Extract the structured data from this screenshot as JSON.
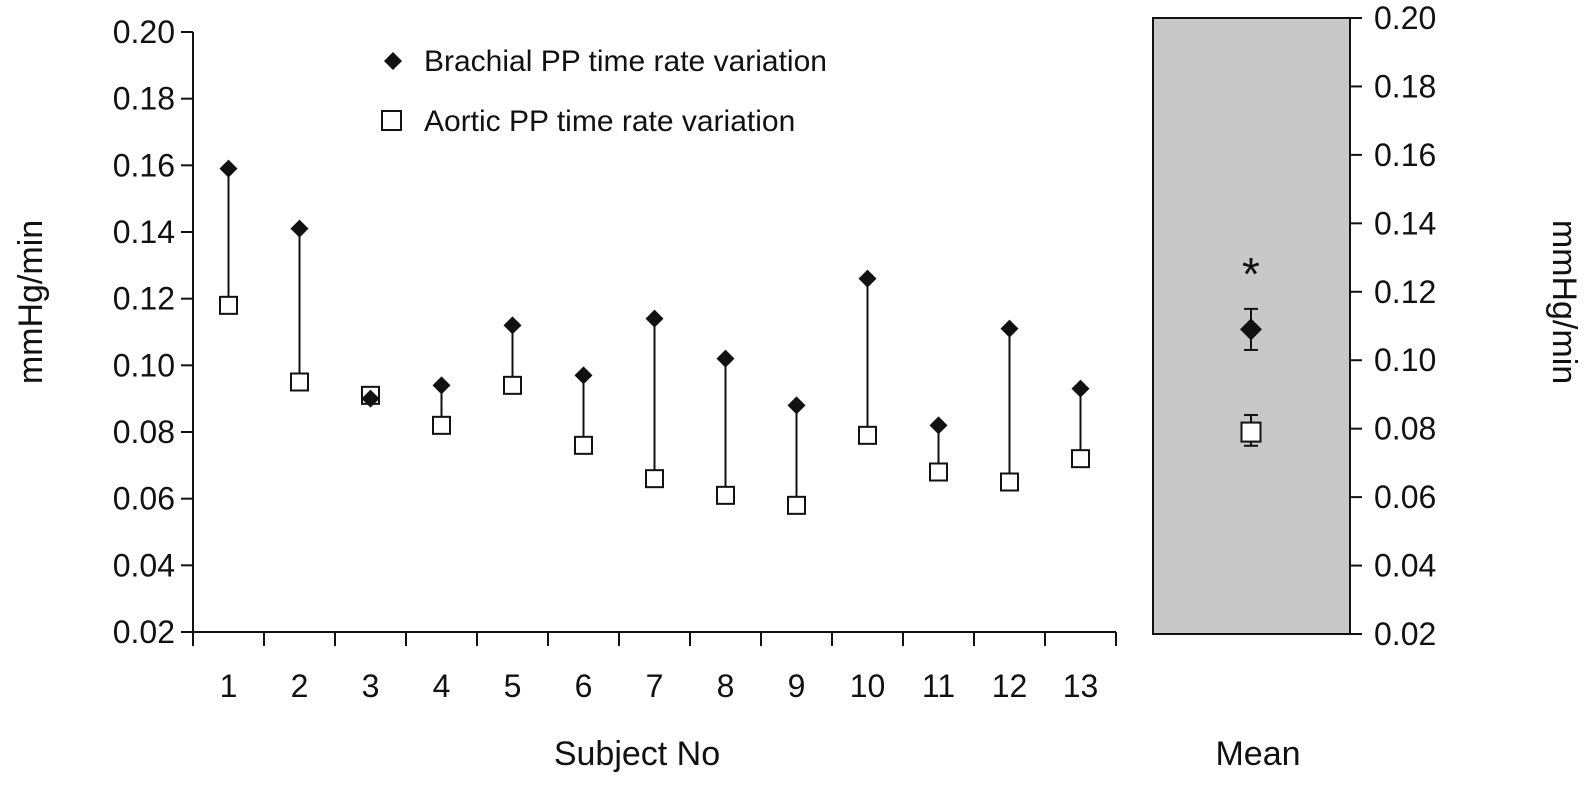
{
  "chart_data": [
    {
      "type": "scatter",
      "xlabel": "Subject No",
      "ylabel": "mmHg/min",
      "ylim": [
        0.02,
        0.2
      ],
      "yticks": [
        "0.20",
        "0.18",
        "0.16",
        "0.14",
        "0.12",
        "0.10",
        "0.08",
        "0.06",
        "0.04",
        "0.02"
      ],
      "categories": [
        "1",
        "2",
        "3",
        "4",
        "5",
        "6",
        "7",
        "8",
        "9",
        "10",
        "11",
        "12",
        "13"
      ],
      "grid": false,
      "legend_position": "top-center",
      "series": [
        {
          "name": "Brachial PP time rate variation",
          "marker": "filled-diamond",
          "values": [
            0.159,
            0.141,
            0.09,
            0.094,
            0.112,
            0.097,
            0.114,
            0.102,
            0.088,
            0.126,
            0.082,
            0.111,
            0.093
          ]
        },
        {
          "name": "Aortic PP time rate variation",
          "marker": "open-square",
          "values": [
            0.118,
            0.095,
            0.091,
            0.082,
            0.094,
            0.076,
            0.066,
            0.061,
            0.058,
            0.079,
            0.068,
            0.065,
            0.072
          ]
        }
      ],
      "connector_lines": true
    },
    {
      "type": "scatter",
      "xlabel": "Mean",
      "ylabel": "mmHg/min",
      "ylim": [
        0.02,
        0.2
      ],
      "yticks": [
        "0.20",
        "0.18",
        "0.16",
        "0.14",
        "0.12",
        "0.10",
        "0.08",
        "0.06",
        "0.04",
        "0.02"
      ],
      "background": "#c8c8c8",
      "series": [
        {
          "name": "Brachial PP time rate variation",
          "marker": "filled-diamond",
          "values": [
            0.109
          ],
          "error": [
            [
              0.103,
              0.115
            ]
          ]
        },
        {
          "name": "Aortic PP time rate variation",
          "marker": "open-square",
          "values": [
            0.079
          ],
          "error": [
            [
              0.075,
              0.084
            ]
          ]
        }
      ],
      "annotation": "*"
    }
  ]
}
